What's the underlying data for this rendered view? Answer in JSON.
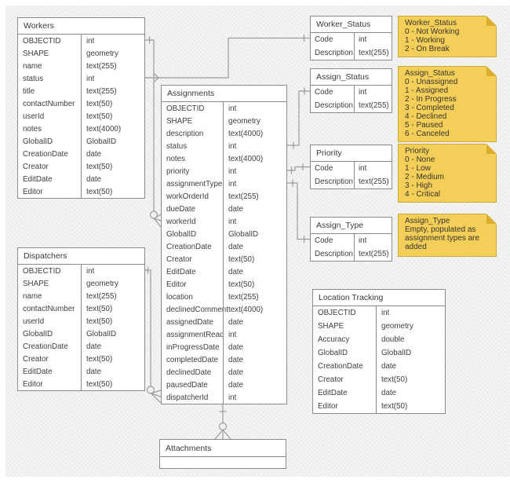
{
  "diagram": {
    "tables": {
      "workers": {
        "title": "Workers",
        "fields": [
          {
            "name": "OBJECTID",
            "type": "int"
          },
          {
            "name": "SHAPE",
            "type": "geometry"
          },
          {
            "name": "name",
            "type": "text(255)"
          },
          {
            "name": "status",
            "type": "int"
          },
          {
            "name": "title",
            "type": "text(255)"
          },
          {
            "name": "contactNumber",
            "type": "text(50)"
          },
          {
            "name": "userId",
            "type": "text(50)"
          },
          {
            "name": "notes",
            "type": "text(4000)"
          },
          {
            "name": "GlobalID",
            "type": "GlobalID"
          },
          {
            "name": "CreationDate",
            "type": "date"
          },
          {
            "name": "Creator",
            "type": "text(50)"
          },
          {
            "name": "EditDate",
            "type": "date"
          },
          {
            "name": "Editor",
            "type": "text(50)"
          }
        ]
      },
      "dispatchers": {
        "title": "Dispatchers",
        "fields": [
          {
            "name": "OBJECTID",
            "type": "int"
          },
          {
            "name": "SHAPE",
            "type": "geometry"
          },
          {
            "name": "name",
            "type": "text(255)"
          },
          {
            "name": "contactNumber",
            "type": "text(50)"
          },
          {
            "name": "userId",
            "type": "text(50)"
          },
          {
            "name": "GlobalID",
            "type": "GlobalID"
          },
          {
            "name": "CreationDate",
            "type": "date"
          },
          {
            "name": "Creator",
            "type": "text(50)"
          },
          {
            "name": "EditDate",
            "type": "date"
          },
          {
            "name": "Editor",
            "type": "text(50)"
          }
        ]
      },
      "assignments": {
        "title": "Assignments",
        "fields": [
          {
            "name": "OBJECTID",
            "type": "int"
          },
          {
            "name": "SHAPE",
            "type": "geometry"
          },
          {
            "name": "description",
            "type": "text(4000)"
          },
          {
            "name": "status",
            "type": "int"
          },
          {
            "name": "notes",
            "type": "text(4000)"
          },
          {
            "name": "priority",
            "type": "int"
          },
          {
            "name": "assignmentType",
            "type": "int"
          },
          {
            "name": "workOrderId",
            "type": "text(255)"
          },
          {
            "name": "dueDate",
            "type": "date"
          },
          {
            "name": "workerId",
            "type": "int"
          },
          {
            "name": "GlobalID",
            "type": "GlobalID"
          },
          {
            "name": "CreationDate",
            "type": "date"
          },
          {
            "name": "Creator",
            "type": "text(50)"
          },
          {
            "name": "EditDate",
            "type": "date"
          },
          {
            "name": "Editor",
            "type": "text(50)"
          },
          {
            "name": "location",
            "type": "text(255)"
          },
          {
            "name": "declinedComment",
            "type": "text(4000)"
          },
          {
            "name": "assignedDate",
            "type": "date"
          },
          {
            "name": "assignmentRead",
            "type": "int"
          },
          {
            "name": "inProgressDate",
            "type": "date"
          },
          {
            "name": "completedDate",
            "type": "date"
          },
          {
            "name": "declinedDate",
            "type": "date"
          },
          {
            "name": "pausedDate",
            "type": "date"
          },
          {
            "name": "dispatcherId",
            "type": "int"
          }
        ]
      },
      "worker_status": {
        "title": "Worker_Status",
        "fields": [
          {
            "name": "Code",
            "type": "int"
          },
          {
            "name": "Description",
            "type": "text(255)"
          }
        ]
      },
      "assign_status": {
        "title": "Assign_Status",
        "fields": [
          {
            "name": "Code",
            "type": "int"
          },
          {
            "name": "Description",
            "type": "text(255)"
          }
        ]
      },
      "priority": {
        "title": "Priority",
        "fields": [
          {
            "name": "Code",
            "type": "int"
          },
          {
            "name": "Description",
            "type": "text(255)"
          }
        ]
      },
      "assign_type": {
        "title": "Assign_Type",
        "fields": [
          {
            "name": "Code",
            "type": "int"
          },
          {
            "name": "Description",
            "type": "text(255)"
          }
        ]
      },
      "location_tracking": {
        "title": "Location Tracking",
        "fields": [
          {
            "name": "OBJECTID",
            "type": "int"
          },
          {
            "name": "SHAPE",
            "type": "geometry"
          },
          {
            "name": "Accuracy",
            "type": "double"
          },
          {
            "name": "GlobalID",
            "type": "GlobalID"
          },
          {
            "name": "CreationDate",
            "type": "date"
          },
          {
            "name": "Creator",
            "type": "text(50)"
          },
          {
            "name": "EditDate",
            "type": "date"
          },
          {
            "name": "Editor",
            "type": "text(50)"
          }
        ]
      },
      "attachments": {
        "title": "Attachments",
        "fields": []
      }
    },
    "notes": {
      "worker_status": {
        "title": "Worker_Status",
        "lines": [
          "0 - Not Working",
          "1 - Working",
          "2 - On Break"
        ]
      },
      "assign_status": {
        "title": "Assign_Status",
        "lines": [
          "0 - Unassigned",
          "1 - Assigned",
          "2 - In Progress",
          "3 - Completed",
          "4 - Declined",
          "5 - Paused",
          "6 - Canceled"
        ]
      },
      "priority": {
        "title": "Priority",
        "lines": [
          "0 - None",
          "1 - Low",
          "2 - Medium",
          "3 - High",
          "4 - Critical"
        ]
      },
      "assign_type": {
        "title": "Assign_Type",
        "lines": [
          "Empty, populated as",
          "assignment types are added"
        ]
      }
    },
    "relationships": [
      {
        "from": "Workers.OBJECTID",
        "to": "Assignments.workerId",
        "from_end": "one",
        "to_end": "zero-or-many"
      },
      {
        "from": "Workers.status",
        "to": "Worker_Status.Code",
        "from_end": "many",
        "to_end": "one"
      },
      {
        "from": "Dispatchers.OBJECTID",
        "to": "Assignments.dispatcherId",
        "from_end": "one",
        "to_end": "zero-or-many"
      },
      {
        "from": "Assignments.status",
        "to": "Assign_Status.Code",
        "from_end": "one",
        "to_end": "one"
      },
      {
        "from": "Assignments.priority",
        "to": "Priority.Code",
        "from_end": "one",
        "to_end": "one"
      },
      {
        "from": "Assignments.assignmentType",
        "to": "Assign_Type.Code",
        "from_end": "one",
        "to_end": "one"
      },
      {
        "from": "Assignments",
        "to": "Attachments",
        "from_end": "one",
        "to_end": "zero-or-many"
      }
    ],
    "colors": {
      "canvas_bg": "#f0f0ee",
      "table_border": "#8a8a8a",
      "connector": "#9b9b9b",
      "note_fill": "#f3ce59",
      "note_fold": "#d9ad2e",
      "note_border": "#c9a83d",
      "text": "#3e3e3e"
    }
  }
}
